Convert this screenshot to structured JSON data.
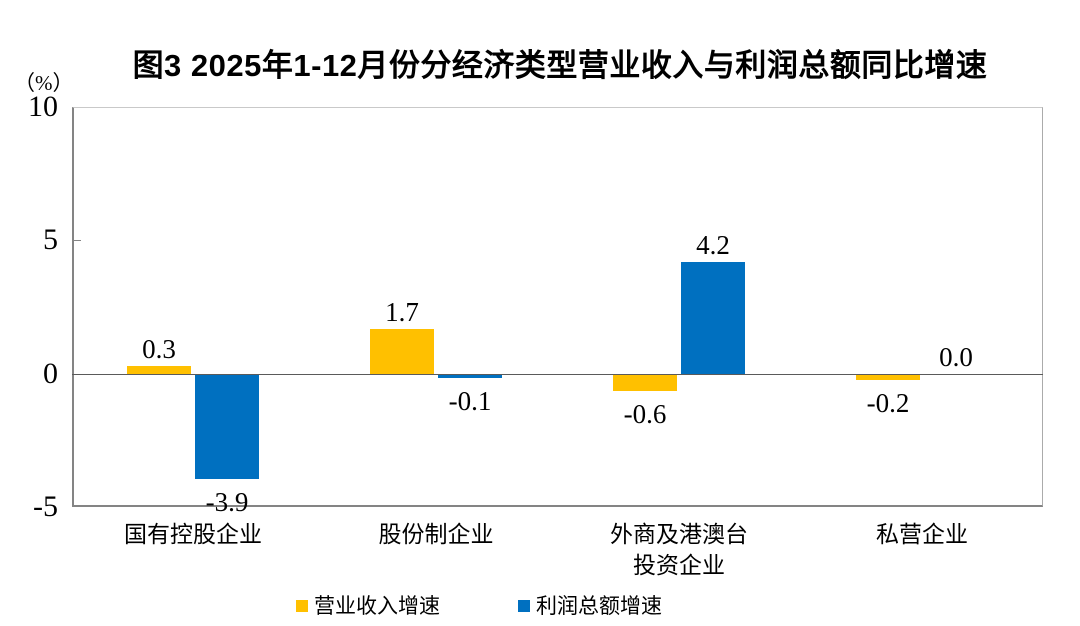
{
  "title": "图3 2025年1-12月份分经济类型营业收入与利润总额同比增速",
  "unit_label": "（%）",
  "chart_data": {
    "type": "bar",
    "title": "图3 2025年1-12月份分经济类型营业收入与利润总额同比增速",
    "categories": [
      "国有控股企业",
      "股份制企业",
      "外商及港澳台投资企业",
      "私营企业"
    ],
    "categories_display": [
      "国有控股企业",
      "股份制企业",
      "外商及港澳台\n投资企业",
      "私营企业"
    ],
    "series": [
      {
        "name": "营业收入增速",
        "color": "#FFC000",
        "values": [
          0.3,
          1.7,
          -0.6,
          -0.2
        ],
        "labels": [
          "0.3",
          "1.7",
          "-0.6",
          "-0.2"
        ]
      },
      {
        "name": "利润总额增速",
        "color": "#0070C0",
        "values": [
          -3.9,
          -0.1,
          4.2,
          0.0
        ],
        "labels": [
          "-3.9",
          "-0.1",
          "4.2",
          "0.0"
        ]
      }
    ],
    "xlabel": "",
    "ylabel": "（%）",
    "ylim": [
      -5,
      10
    ],
    "yticks": [
      10,
      5,
      0,
      -5
    ],
    "grid": false,
    "legend_position": "bottom"
  }
}
